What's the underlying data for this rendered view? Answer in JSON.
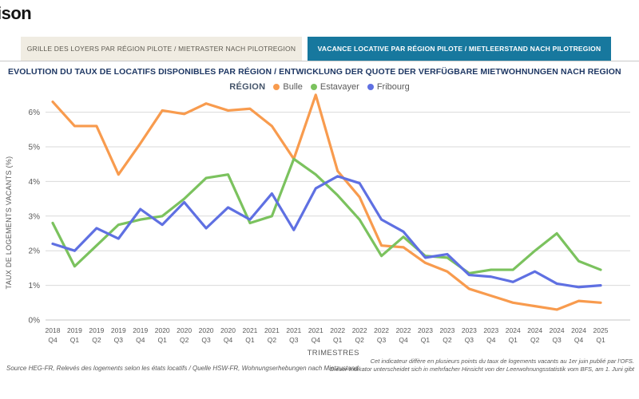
{
  "logo": {
    "text": "ison"
  },
  "tabs": {
    "rents": {
      "label": "GRILLE DES LOYERS PAR RÉGION PILOTE / MIETRASTER NACH PILOTREGION",
      "active": false
    },
    "vacancy": {
      "label": "VACANCE LOCATIVE PAR RÉGION PILOTE / MIETLEERSTAND NACH PILOTREGION",
      "active": true
    }
  },
  "title": "EVOLUTION DU TAUX DE LOCATIFS DISPONIBLES PAR RÉGION / ENTWICKLUNG DER QUOTE DER VERFÜGBARE MIETWOHNUNGEN NACH REGION",
  "legend": {
    "title": "RÉGION",
    "items": [
      {
        "label": "Bulle",
        "color": "#F89B4E"
      },
      {
        "label": "Estavayer",
        "color": "#7BC25E"
      },
      {
        "label": "Fribourg",
        "color": "#5F70E2"
      }
    ]
  },
  "chart_data": {
    "type": "line",
    "title": "Evolution du taux de locatifs disponibles par région",
    "xlabel": "TRIMESTRES",
    "ylabel": "TAUX DE LOGEMENTS VACANTS (%)",
    "ylim": [
      0,
      6.6
    ],
    "yticks": [
      0,
      1,
      2,
      3,
      4,
      5,
      6
    ],
    "ytick_suffix": "%",
    "grid": true,
    "legend_position": "top-center",
    "categories": [
      "2018 Q4",
      "2019 Q1",
      "2019 Q2",
      "2019 Q3",
      "2019 Q4",
      "2020 Q1",
      "2020 Q2",
      "2020 Q3",
      "2020 Q4",
      "2021 Q1",
      "2021 Q2",
      "2021 Q3",
      "2021 Q4",
      "2022 Q1",
      "2022 Q2",
      "2022 Q3",
      "2022 Q4",
      "2023 Q1",
      "2023 Q2",
      "2023 Q3",
      "2023 Q4",
      "2024 Q1",
      "2024 Q2",
      "2024 Q3",
      "2024 Q4",
      "2025 Q1"
    ],
    "series": [
      {
        "name": "Bulle",
        "color": "#F89B4E",
        "values": [
          6.3,
          5.6,
          5.6,
          4.2,
          5.1,
          6.05,
          5.95,
          6.25,
          6.05,
          6.1,
          5.6,
          4.65,
          6.5,
          4.3,
          3.55,
          2.15,
          2.1,
          1.65,
          1.4,
          0.9,
          0.7,
          0.5,
          0.4,
          0.3,
          0.55,
          0.5
        ]
      },
      {
        "name": "Estavayer",
        "color": "#7BC25E",
        "values": [
          2.8,
          1.55,
          2.15,
          2.75,
          2.9,
          3.0,
          3.5,
          4.1,
          4.2,
          2.8,
          3.0,
          4.65,
          4.2,
          3.6,
          2.9,
          1.85,
          2.4,
          1.85,
          1.8,
          1.35,
          1.45,
          1.45,
          2.0,
          2.5,
          1.7,
          1.45
        ]
      },
      {
        "name": "Fribourg",
        "color": "#5F70E2",
        "values": [
          2.2,
          2.0,
          2.65,
          2.35,
          3.2,
          2.75,
          3.4,
          2.65,
          3.25,
          2.9,
          3.65,
          2.6,
          3.8,
          4.15,
          3.95,
          2.9,
          2.55,
          1.8,
          1.9,
          1.3,
          1.25,
          1.1,
          1.4,
          1.05,
          0.95,
          1.0
        ]
      }
    ]
  },
  "footnotes": {
    "source_left": "Source HEG-FR, Relevés des logements selon les états locatifs / Quelle HSW-FR, Wohnungserhebungen nach Mietzustand",
    "right_line1": "Cet indicateur diffère en plusieurs points du taux de logements vacants au 1er juin publié par l'OFS.",
    "right_line2": "Dieser Indikator unterscheidet sich in mehrfacher Hinsicht von der Leerwohnungsstatistik vom BFS, am 1. Juni gibt"
  }
}
